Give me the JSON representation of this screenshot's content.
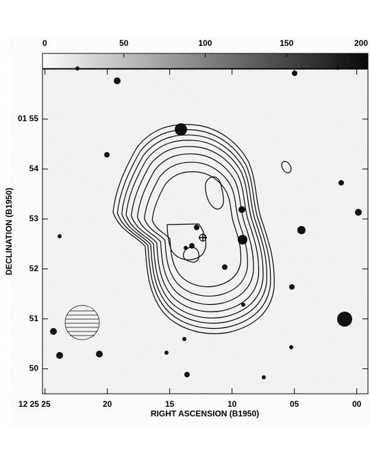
{
  "chart_data": {
    "type": "image",
    "xlabel": "RIGHT ASCENSION (B1950)",
    "ylabel": "DECLINATION (B1950)",
    "xlim": [
      25.2,
      -0.9
    ],
    "xticks": [
      {
        "value": 25,
        "label": "12 25 25"
      },
      20,
      15,
      10,
      {
        "value": 5,
        "label": "05"
      },
      {
        "value": 0,
        "label": "00"
      }
    ],
    "ylim": [
      49.5,
      56.0
    ],
    "yticks": [
      {
        "value": 55,
        "label": "01 55"
      },
      54,
      53,
      52,
      51,
      50
    ],
    "colorbar_lim": [
      0,
      200
    ],
    "colorbar_ticks": [
      0,
      50,
      100,
      150,
      200
    ]
  }
}
